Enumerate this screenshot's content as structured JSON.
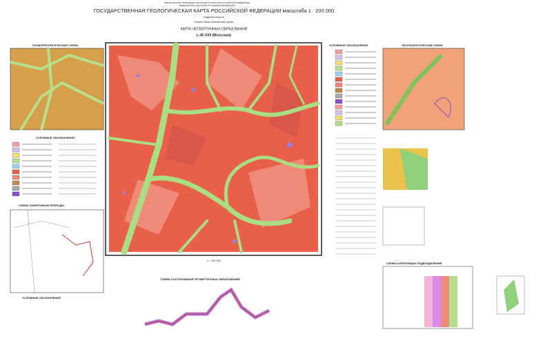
{
  "header": {
    "ministry": "МИНИСТЕРСТВО ПРИРОДНЫХ РЕСУРСОВ И ЭКОЛОГИИ РОССИЙСКОЙ ФЕДЕРАЦИИ",
    "agency": "ФЕДЕРАЛЬНОЕ АГЕНТСТВО ПО НЕДРОПОЛЬЗОВАНИЮ",
    "title": "ГОСУДАРСТВЕННАЯ ГЕОЛОГИЧЕСКАЯ КАРТА РОССИЙСКОЙ ФЕДЕРАЦИИ масштаба 1 : 200 000",
    "edition": "Издание второе",
    "series": "Южно-Окско-Алтайская серия",
    "map_title": "КАРТА ЧЕТВЕРТИЧНЫХ ОБРАЗОВАНИЙ",
    "sheet": "L-45-XXII (Мольгани)"
  },
  "panels": {
    "geomorph": "ГЕОМОРФОЛОГИЧЕСКАЯ СХЕМА",
    "left_legend": "УСЛОВНЫЕ ОБОЗНАЧЕНИЯ",
    "nature": "СХЕМА ПАМЯТНИКОВ ПРИРОДЫ",
    "bottom_legend": "УСЛОВНЫЕ ОБОЗНАЧЕНИЯ",
    "main_legend": "УСЛОВНЫЕ ОБОЗНАЧЕНИЯ",
    "eco": "ЭКОГЕОЛОГИЧЕСКАЯ СХЕМА",
    "profile": "СХЕМА СООТНОШЕНИЙ ЧЕТВЕРТИЧНЫХ ОБРАЗОВАНИЙ",
    "correlation": "СХЕМА КОРРЕЛЯЦИИ ПОДРАЗДЕЛЕНИЙ",
    "scale": "1 : 200 000"
  }
}
